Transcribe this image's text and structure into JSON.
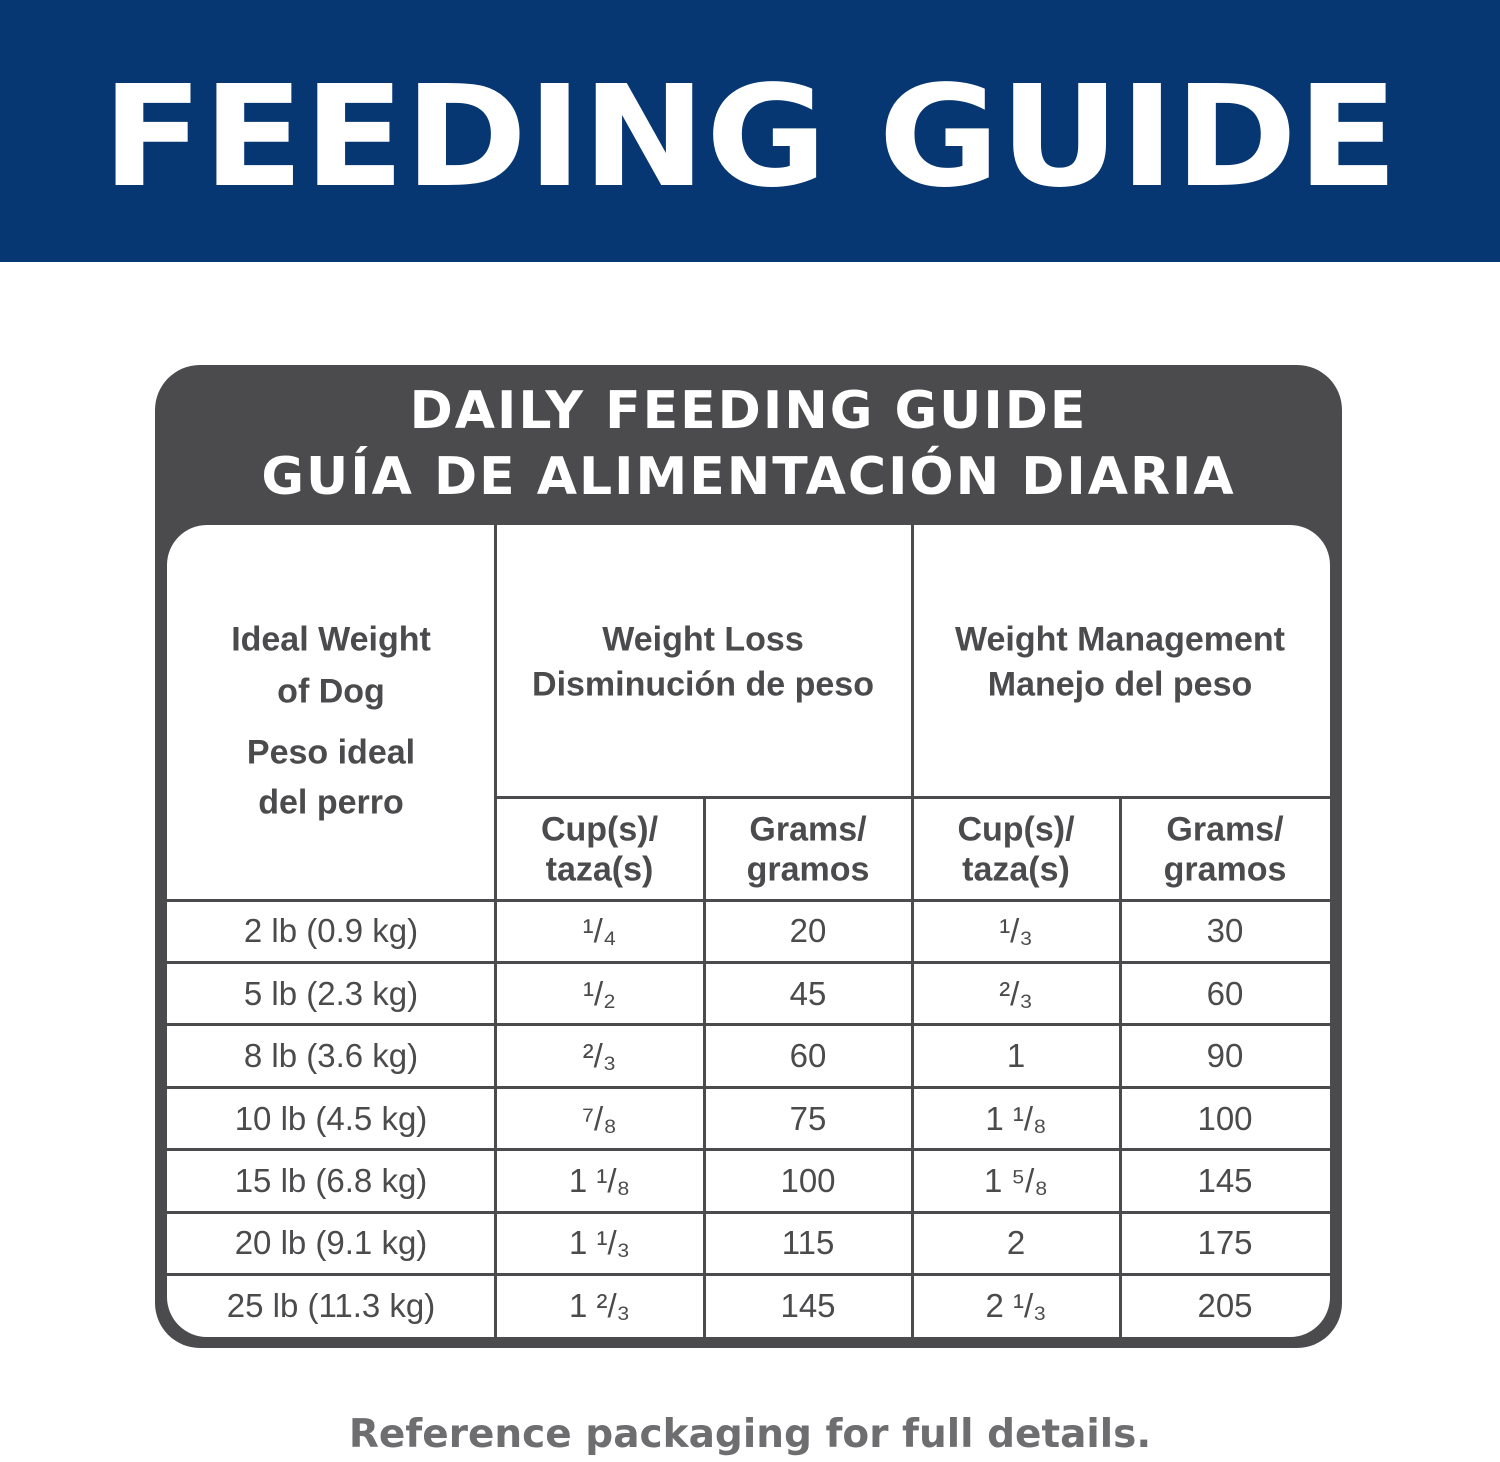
{
  "header": {
    "title": "FEEDING GUIDE"
  },
  "table": {
    "title": [
      "DAILY FEEDING GUIDE",
      "GUÍA DE ALIMENTACIÓN DIARIA"
    ],
    "column_headers": {
      "weight": [
        "Ideal Weight",
        "of Dog",
        "Peso ideal",
        "del perro"
      ],
      "weight_loss": [
        "Weight Loss",
        "Disminución de peso"
      ],
      "weight_management": [
        "Weight Management",
        "Manejo del peso"
      ],
      "units": [
        [
          "Cup(s)/",
          "taza(s)"
        ],
        [
          "Grams/",
          "gramos"
        ],
        [
          "Cup(s)/",
          "taza(s)"
        ],
        [
          "Grams/",
          "gramos"
        ]
      ]
    },
    "rows": [
      [
        "2 lb (0.9 kg)",
        "¹/₄",
        20,
        "¹/₃",
        30
      ],
      [
        "5 lb (2.3 kg)",
        "¹/₂",
        45,
        "²/₃",
        60
      ],
      [
        "8 lb (3.6 kg)",
        "²/₃",
        60,
        1,
        90
      ],
      [
        "10 lb (4.5 kg)",
        "⁷/₈",
        75,
        "1 ¹/₈",
        100
      ],
      [
        "15 lb (6.8 kg)",
        "1 ¹/₈",
        100,
        "1 ⁵/₈",
        145
      ],
      [
        "20 lb (9.1 kg)",
        "1 ¹/₃",
        115,
        2,
        175
      ],
      [
        "25 lb (11.3 kg)",
        "1 ²/₃",
        145,
        "2 ¹/₃",
        205
      ]
    ]
  },
  "footer": {
    "note": "Reference packaging for full details."
  }
}
